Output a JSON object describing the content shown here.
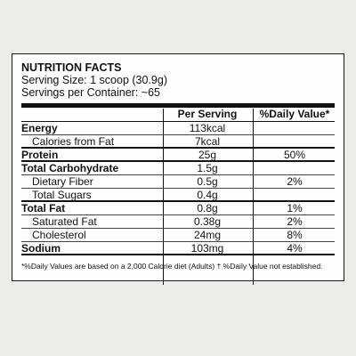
{
  "label": {
    "title": "NUTRITION FACTS",
    "serving_size": "Serving Size: 1 scoop (30.9g)",
    "servings_per_container": "Servings per Container: ~65",
    "columns": {
      "per_serving": "Per Serving",
      "daily_value": "%Daily Value*"
    },
    "rows": [
      {
        "name": "Energy",
        "per_serving": "113kcal",
        "daily_value": "",
        "style": "bold"
      },
      {
        "name": "Calories from Fat",
        "per_serving": "7kcal",
        "daily_value": "",
        "style": "sub-thick"
      },
      {
        "name": "Protein",
        "per_serving": "25g",
        "daily_value": "50%",
        "style": "bold-thick"
      },
      {
        "name": "Total Carbohydrate",
        "per_serving": "1.5g",
        "daily_value": "",
        "style": "bold"
      },
      {
        "name": "Dietary Fiber",
        "per_serving": "0.5g",
        "daily_value": "2%",
        "style": "sub"
      },
      {
        "name": "Total Sugars",
        "per_serving": "0.4g",
        "daily_value": "",
        "style": "sub-thick"
      },
      {
        "name": "Total Fat",
        "per_serving": "0.8g",
        "daily_value": "1%",
        "style": "bold"
      },
      {
        "name": "Saturated Fat",
        "per_serving": "0.38g",
        "daily_value": "2%",
        "style": "sub"
      },
      {
        "name": "Cholesterol",
        "per_serving": "24mg",
        "daily_value": "8%",
        "style": "sub"
      },
      {
        "name": "Sodium",
        "per_serving": "103mg",
        "daily_value": "4%",
        "style": "bold-thick"
      }
    ],
    "footnote": "*%Daily Values are based on a 2,000 Calorie diet (Adults) † %Daily Value not established."
  }
}
